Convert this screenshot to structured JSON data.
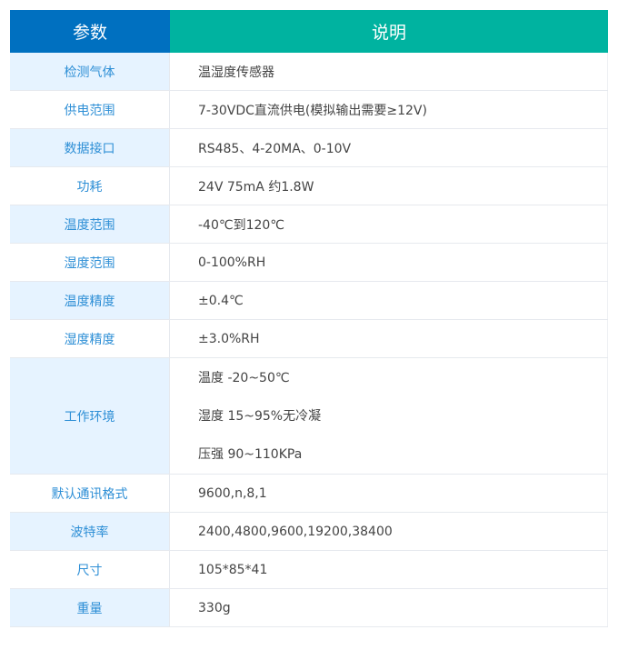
{
  "colors": {
    "header_param": "#0070c0",
    "header_desc": "#00b3a0",
    "label": "#2e8fd6",
    "label_bg_alt": "#e6f3ff"
  },
  "header": {
    "param": "参数",
    "desc": "说明"
  },
  "rows": [
    {
      "label": "检测气体",
      "values": [
        "温湿度传感器"
      ]
    },
    {
      "label": "供电范围",
      "values": [
        "7-30VDC直流供电(模拟输出需要≥12V)"
      ]
    },
    {
      "label": "数据接口",
      "values": [
        "RS485、4-20MA、0-10V"
      ]
    },
    {
      "label": "功耗",
      "values": [
        "24V 75mA 约1.8W"
      ]
    },
    {
      "label": "温度范围",
      "values": [
        "-40℃到120℃"
      ]
    },
    {
      "label": "湿度范围",
      "values": [
        "0-100%RH"
      ]
    },
    {
      "label": "温度精度",
      "values": [
        "±0.4℃"
      ]
    },
    {
      "label": "湿度精度",
      "values": [
        "±3.0%RH"
      ]
    },
    {
      "label": "工作环境",
      "values": [
        "温度 -20~50℃",
        "湿度 15~95%无冷凝",
        "压强 90~110KPa"
      ]
    },
    {
      "label": "默认通讯格式",
      "values": [
        "9600,n,8,1"
      ]
    },
    {
      "label": "波特率",
      "values": [
        "2400,4800,9600,19200,38400"
      ]
    },
    {
      "label": "尺寸",
      "values": [
        "105*85*41"
      ]
    },
    {
      "label": "重量",
      "values": [
        "330g"
      ]
    }
  ]
}
